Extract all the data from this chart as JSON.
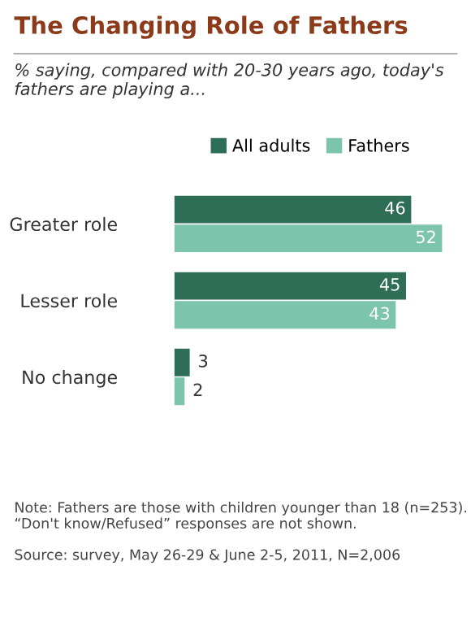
{
  "chart_data": {
    "type": "bar",
    "orientation": "horizontal",
    "title": "The Changing Role of Fathers",
    "subtitle": "% saying, compared with 20-30 years ago, today's fathers are playing a...",
    "categories": [
      "Greater role",
      "Lesser role",
      "No change"
    ],
    "series": [
      {
        "name": "All adults",
        "color": "#2e6e57",
        "values": [
          46,
          45,
          3
        ]
      },
      {
        "name": "Fathers",
        "color": "#7cc4ab",
        "values": [
          52,
          43,
          2
        ]
      }
    ],
    "data_labels": true,
    "legend": "top",
    "grid": false,
    "annotations": [
      "Note: Fathers are those with children younger than 18 (n=253). “Don't know/Refused” responses are not shown.",
      "Source: survey, May 26-29 & June 2-5, 2011, N=2,006"
    ]
  }
}
